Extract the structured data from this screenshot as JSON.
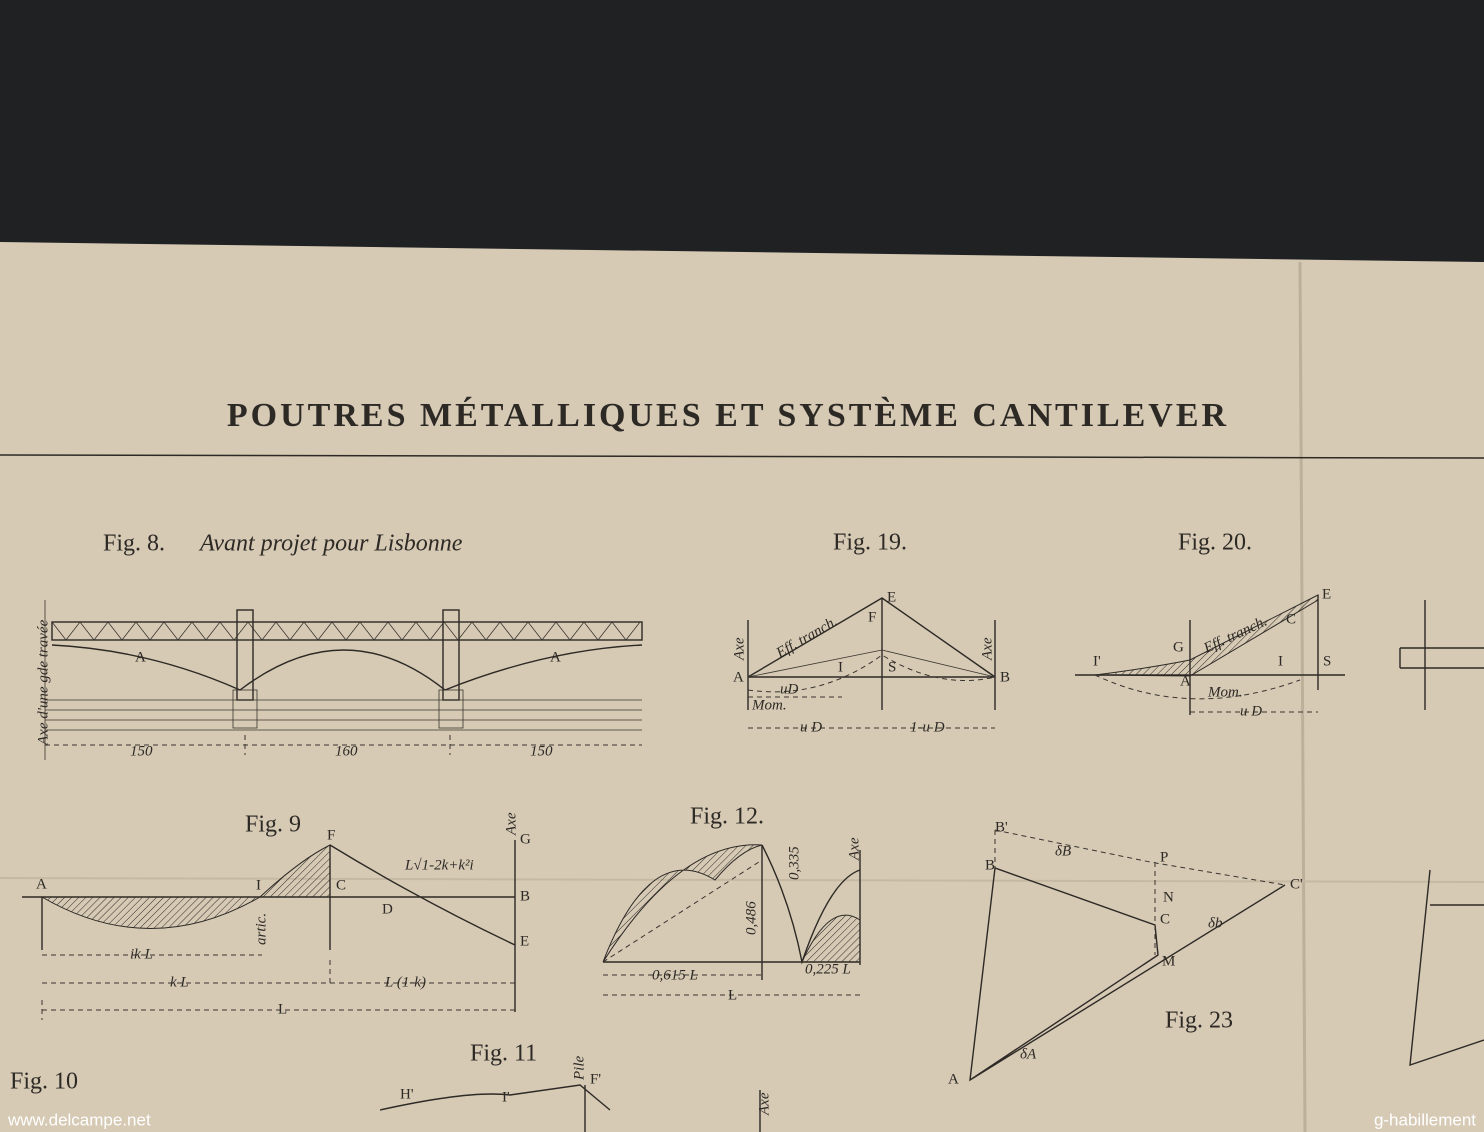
{
  "header": {
    "title": "POUTRES MÉTALLIQUES ET SYSTÈME CANTILEVER"
  },
  "figures": [
    {
      "caption": "Fig. 8.",
      "subtitle": "Avant projet pour Lisbonne",
      "labels": [
        "Axe d'une gde travée",
        "A",
        "A",
        "150",
        "160",
        "150"
      ]
    },
    {
      "caption": "Fig. 19.",
      "labels": [
        "Axe",
        "Eff. tranch.",
        "E",
        "F",
        "I",
        "S",
        "A",
        "B",
        "Axe",
        "uD",
        "Mom.",
        "u D",
        "1-u D"
      ]
    },
    {
      "caption": "Fig. 20.",
      "labels": [
        "Eff. tranch.",
        "E",
        "C",
        "G",
        "I'",
        "I",
        "S",
        "A",
        "Mom.",
        "u D"
      ]
    },
    {
      "caption": "Fig. 9",
      "labels": [
        "F",
        "Axe",
        "G",
        "L√1-2k+k²i",
        "A",
        "I",
        "C",
        "D",
        "B",
        "artic.",
        "E",
        "ik L",
        "k L",
        "L (1-k)",
        "L"
      ]
    },
    {
      "caption": "Fig. 12.",
      "labels": [
        "Axe",
        "0,615 L",
        "L",
        "0,225 L",
        "0,486",
        "0,335"
      ]
    },
    {
      "caption": "Fig. 23",
      "labels": [
        "B'",
        "B",
        "δB",
        "P",
        "N",
        "C",
        "C'",
        "M",
        "A",
        "δA",
        "δb"
      ]
    },
    {
      "caption": "Fig. 11",
      "labels": [
        "Pile",
        "F'",
        "H'",
        "I'",
        "Axe"
      ]
    },
    {
      "caption": "Fig. 10"
    }
  ],
  "watermarks": {
    "left": "www.delcampe.net",
    "right": "g-habillement"
  }
}
